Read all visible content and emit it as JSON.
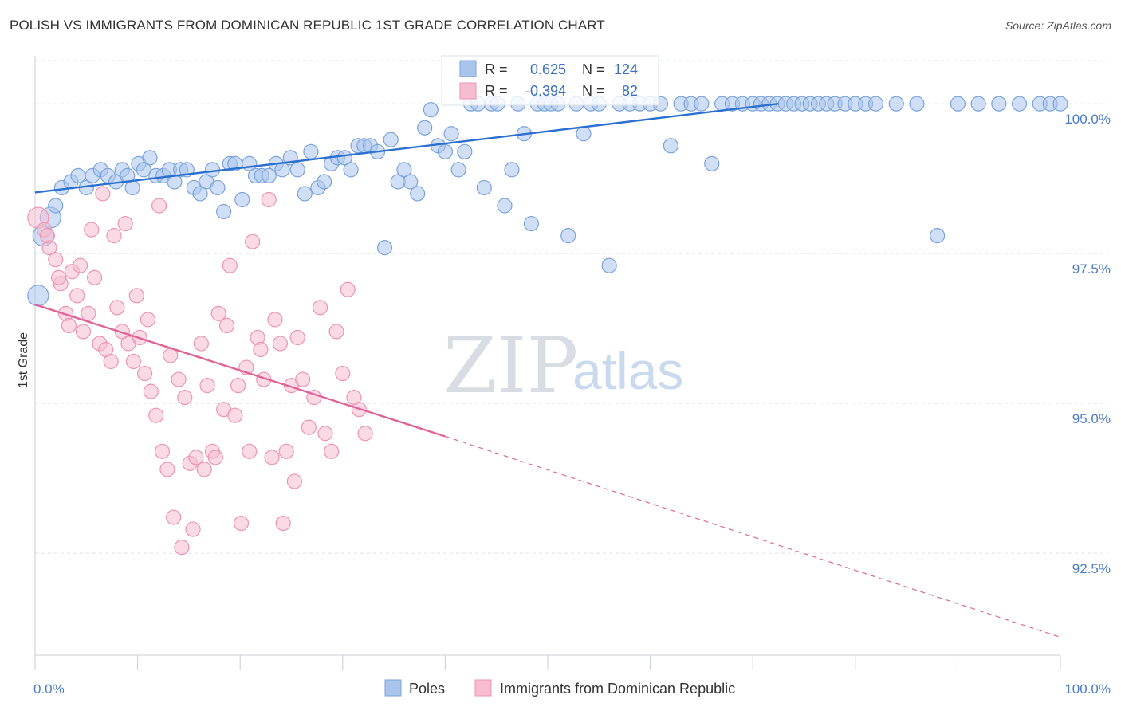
{
  "title": "POLISH VS IMMIGRANTS FROM DOMINICAN REPUBLIC 1ST GRADE CORRELATION CHART",
  "source": "Source: ZipAtlas.com",
  "watermark": {
    "zip": "ZIP",
    "atlas": "atlas"
  },
  "colors": {
    "poles_fill": "#a9c5ec",
    "poles_stroke": "#7aa3dd",
    "poles_line": "#2b6fd0",
    "dom_fill": "#f6bcd0",
    "dom_stroke": "#ee93b3",
    "dom_line": "#e0649a",
    "grid": "#dde3ea",
    "tick_label": "#4a7cc9"
  },
  "stats": {
    "r_label": "R =",
    "n_label": "N =",
    "poles": {
      "r": "0.625",
      "n": "124"
    },
    "dom": {
      "r": "-0.394",
      "n": "82"
    }
  },
  "chart_data": {
    "type": "scatter",
    "ylabel": "1st Grade",
    "xlabel": "",
    "xlim": [
      0,
      100
    ],
    "ylim": [
      90.8,
      100.8
    ],
    "x_tick_labels": [
      {
        "value": 0,
        "label": "0.0%"
      },
      {
        "value": 100,
        "label": "100.0%"
      }
    ],
    "y_tick_labels": [
      {
        "value": 100,
        "label": "100.0%"
      },
      {
        "value": 97.5,
        "label": "97.5%"
      },
      {
        "value": 95,
        "label": "95.0%"
      },
      {
        "value": 92.5,
        "label": "92.5%"
      }
    ],
    "grid": true,
    "legend_position": "bottom",
    "series": [
      {
        "name": "Poles",
        "trend": {
          "x": [
            0,
            72.5
          ],
          "y": [
            98.52,
            100.0
          ]
        },
        "points": [
          [
            0.3,
            96.8
          ],
          [
            0.8,
            97.8
          ],
          [
            1.5,
            98.1
          ],
          [
            2.0,
            98.3
          ],
          [
            2.6,
            98.6
          ],
          [
            3.5,
            98.7
          ],
          [
            4.2,
            98.8
          ],
          [
            5.0,
            98.6
          ],
          [
            5.6,
            98.8
          ],
          [
            6.4,
            98.9
          ],
          [
            7.1,
            98.8
          ],
          [
            7.9,
            98.7
          ],
          [
            8.5,
            98.9
          ],
          [
            9.0,
            98.8
          ],
          [
            9.5,
            98.6
          ],
          [
            10.1,
            99.0
          ],
          [
            10.6,
            98.9
          ],
          [
            11.2,
            99.1
          ],
          [
            11.8,
            98.8
          ],
          [
            12.5,
            98.8
          ],
          [
            13.1,
            98.9
          ],
          [
            13.6,
            98.7
          ],
          [
            14.2,
            98.9
          ],
          [
            14.8,
            98.9
          ],
          [
            15.5,
            98.6
          ],
          [
            16.1,
            98.5
          ],
          [
            16.7,
            98.7
          ],
          [
            17.3,
            98.9
          ],
          [
            17.8,
            98.6
          ],
          [
            18.4,
            98.2
          ],
          [
            19.0,
            99.0
          ],
          [
            19.5,
            99.0
          ],
          [
            20.2,
            98.4
          ],
          [
            20.9,
            99.0
          ],
          [
            21.5,
            98.8
          ],
          [
            22.1,
            98.8
          ],
          [
            22.8,
            98.8
          ],
          [
            23.5,
            99.0
          ],
          [
            24.1,
            98.9
          ],
          [
            24.9,
            99.1
          ],
          [
            25.6,
            98.9
          ],
          [
            26.3,
            98.5
          ],
          [
            26.9,
            99.2
          ],
          [
            27.6,
            98.6
          ],
          [
            28.2,
            98.7
          ],
          [
            28.9,
            99.0
          ],
          [
            29.5,
            99.1
          ],
          [
            30.2,
            99.1
          ],
          [
            30.8,
            98.9
          ],
          [
            31.5,
            99.3
          ],
          [
            32.1,
            99.3
          ],
          [
            32.7,
            99.3
          ],
          [
            33.4,
            99.2
          ],
          [
            34.1,
            97.6
          ],
          [
            34.7,
            99.4
          ],
          [
            35.4,
            98.7
          ],
          [
            36.0,
            98.9
          ],
          [
            36.6,
            98.7
          ],
          [
            37.3,
            98.5
          ],
          [
            38.0,
            99.6
          ],
          [
            38.6,
            99.9
          ],
          [
            39.3,
            99.3
          ],
          [
            40.0,
            99.2
          ],
          [
            40.6,
            99.5
          ],
          [
            41.3,
            98.9
          ],
          [
            41.9,
            99.2
          ],
          [
            42.5,
            100.0
          ],
          [
            43.2,
            100.0
          ],
          [
            43.8,
            98.6
          ],
          [
            44.5,
            100.0
          ],
          [
            45.1,
            100.0
          ],
          [
            45.8,
            98.3
          ],
          [
            46.5,
            98.9
          ],
          [
            47.1,
            100.0
          ],
          [
            47.7,
            99.5
          ],
          [
            48.4,
            98.0
          ],
          [
            49.0,
            100.0
          ],
          [
            49.7,
            100.0
          ],
          [
            50.3,
            100.0
          ],
          [
            51.0,
            100.0
          ],
          [
            52.0,
            97.8
          ],
          [
            52.8,
            100.0
          ],
          [
            53.5,
            99.5
          ],
          [
            54.2,
            100.0
          ],
          [
            55.0,
            100.0
          ],
          [
            56.0,
            97.3
          ],
          [
            57.0,
            100.0
          ],
          [
            58.0,
            100.0
          ],
          [
            59.0,
            100.0
          ],
          [
            60.0,
            100.0
          ],
          [
            61.0,
            100.0
          ],
          [
            62.0,
            99.3
          ],
          [
            63.0,
            100.0
          ],
          [
            64.0,
            100.0
          ],
          [
            65.0,
            100.0
          ],
          [
            66.0,
            99.0
          ],
          [
            67.0,
            100.0
          ],
          [
            68.0,
            100.0
          ],
          [
            69.0,
            100.0
          ],
          [
            70.0,
            100.0
          ],
          [
            70.8,
            100.0
          ],
          [
            71.6,
            100.0
          ],
          [
            72.4,
            100.0
          ],
          [
            73.2,
            100.0
          ],
          [
            74.0,
            100.0
          ],
          [
            74.8,
            100.0
          ],
          [
            75.6,
            100.0
          ],
          [
            76.4,
            100.0
          ],
          [
            77.2,
            100.0
          ],
          [
            78.0,
            100.0
          ],
          [
            79.0,
            100.0
          ],
          [
            80.0,
            100.0
          ],
          [
            81.0,
            100.0
          ],
          [
            82.0,
            100.0
          ],
          [
            84.0,
            100.0
          ],
          [
            86.0,
            100.0
          ],
          [
            88.0,
            97.8
          ],
          [
            90.0,
            100.0
          ],
          [
            92.0,
            100.0
          ],
          [
            94.0,
            100.0
          ],
          [
            96.0,
            100.0
          ],
          [
            98.0,
            100.0
          ],
          [
            99.0,
            100.0
          ],
          [
            100.0,
            100.0
          ]
        ]
      },
      {
        "name": "Immigrants from Dominican Republic",
        "trend": {
          "x": [
            0,
            40
          ],
          "y": [
            96.65,
            94.45
          ]
        },
        "trend_extension": {
          "x": [
            40,
            100
          ],
          "y": [
            94.45,
            91.1
          ]
        },
        "points": [
          [
            0.3,
            98.1
          ],
          [
            0.9,
            97.9
          ],
          [
            1.4,
            97.6
          ],
          [
            2.0,
            97.4
          ],
          [
            2.5,
            97.0
          ],
          [
            3.0,
            96.5
          ],
          [
            3.6,
            97.2
          ],
          [
            4.1,
            96.8
          ],
          [
            4.7,
            96.2
          ],
          [
            5.2,
            96.5
          ],
          [
            5.8,
            97.1
          ],
          [
            6.3,
            96.0
          ],
          [
            6.9,
            95.9
          ],
          [
            7.4,
            95.7
          ],
          [
            8.0,
            96.6
          ],
          [
            8.5,
            96.2
          ],
          [
            9.1,
            96.0
          ],
          [
            9.6,
            95.7
          ],
          [
            10.2,
            96.1
          ],
          [
            10.7,
            95.5
          ],
          [
            11.3,
            95.2
          ],
          [
            11.8,
            94.8
          ],
          [
            12.4,
            94.2
          ],
          [
            12.9,
            93.9
          ],
          [
            13.5,
            93.1
          ],
          [
            14.0,
            95.4
          ],
          [
            14.6,
            95.1
          ],
          [
            15.1,
            94.0
          ],
          [
            15.7,
            94.1
          ],
          [
            16.2,
            96.0
          ],
          [
            16.8,
            95.3
          ],
          [
            17.3,
            94.2
          ],
          [
            17.9,
            96.5
          ],
          [
            18.4,
            94.9
          ],
          [
            19.0,
            97.3
          ],
          [
            19.5,
            94.8
          ],
          [
            20.1,
            93.0
          ],
          [
            20.6,
            95.6
          ],
          [
            21.2,
            97.7
          ],
          [
            21.7,
            96.1
          ],
          [
            22.3,
            95.4
          ],
          [
            22.8,
            98.4
          ],
          [
            23.4,
            96.4
          ],
          [
            23.9,
            96.0
          ],
          [
            24.5,
            94.2
          ],
          [
            25.0,
            95.3
          ],
          [
            25.6,
            96.1
          ],
          [
            26.1,
            95.4
          ],
          [
            26.7,
            94.6
          ],
          [
            27.2,
            95.1
          ],
          [
            27.8,
            96.6
          ],
          [
            28.3,
            94.5
          ],
          [
            28.9,
            94.2
          ],
          [
            29.4,
            96.2
          ],
          [
            30.0,
            95.5
          ],
          [
            30.5,
            96.9
          ],
          [
            31.1,
            95.1
          ],
          [
            31.6,
            94.9
          ],
          [
            32.2,
            94.5
          ],
          [
            1.2,
            97.8
          ],
          [
            2.3,
            97.1
          ],
          [
            3.3,
            96.3
          ],
          [
            4.4,
            97.3
          ],
          [
            5.5,
            97.9
          ],
          [
            6.6,
            98.5
          ],
          [
            7.7,
            97.8
          ],
          [
            8.8,
            98.0
          ],
          [
            9.9,
            96.8
          ],
          [
            11.0,
            96.4
          ],
          [
            12.1,
            98.3
          ],
          [
            13.2,
            95.8
          ],
          [
            14.3,
            92.6
          ],
          [
            15.4,
            92.9
          ],
          [
            16.5,
            93.9
          ],
          [
            17.6,
            94.1
          ],
          [
            18.7,
            96.3
          ],
          [
            19.8,
            95.3
          ],
          [
            20.9,
            94.2
          ],
          [
            22.0,
            95.9
          ],
          [
            23.1,
            94.1
          ],
          [
            24.2,
            93.0
          ],
          [
            25.3,
            93.7
          ]
        ]
      }
    ]
  }
}
